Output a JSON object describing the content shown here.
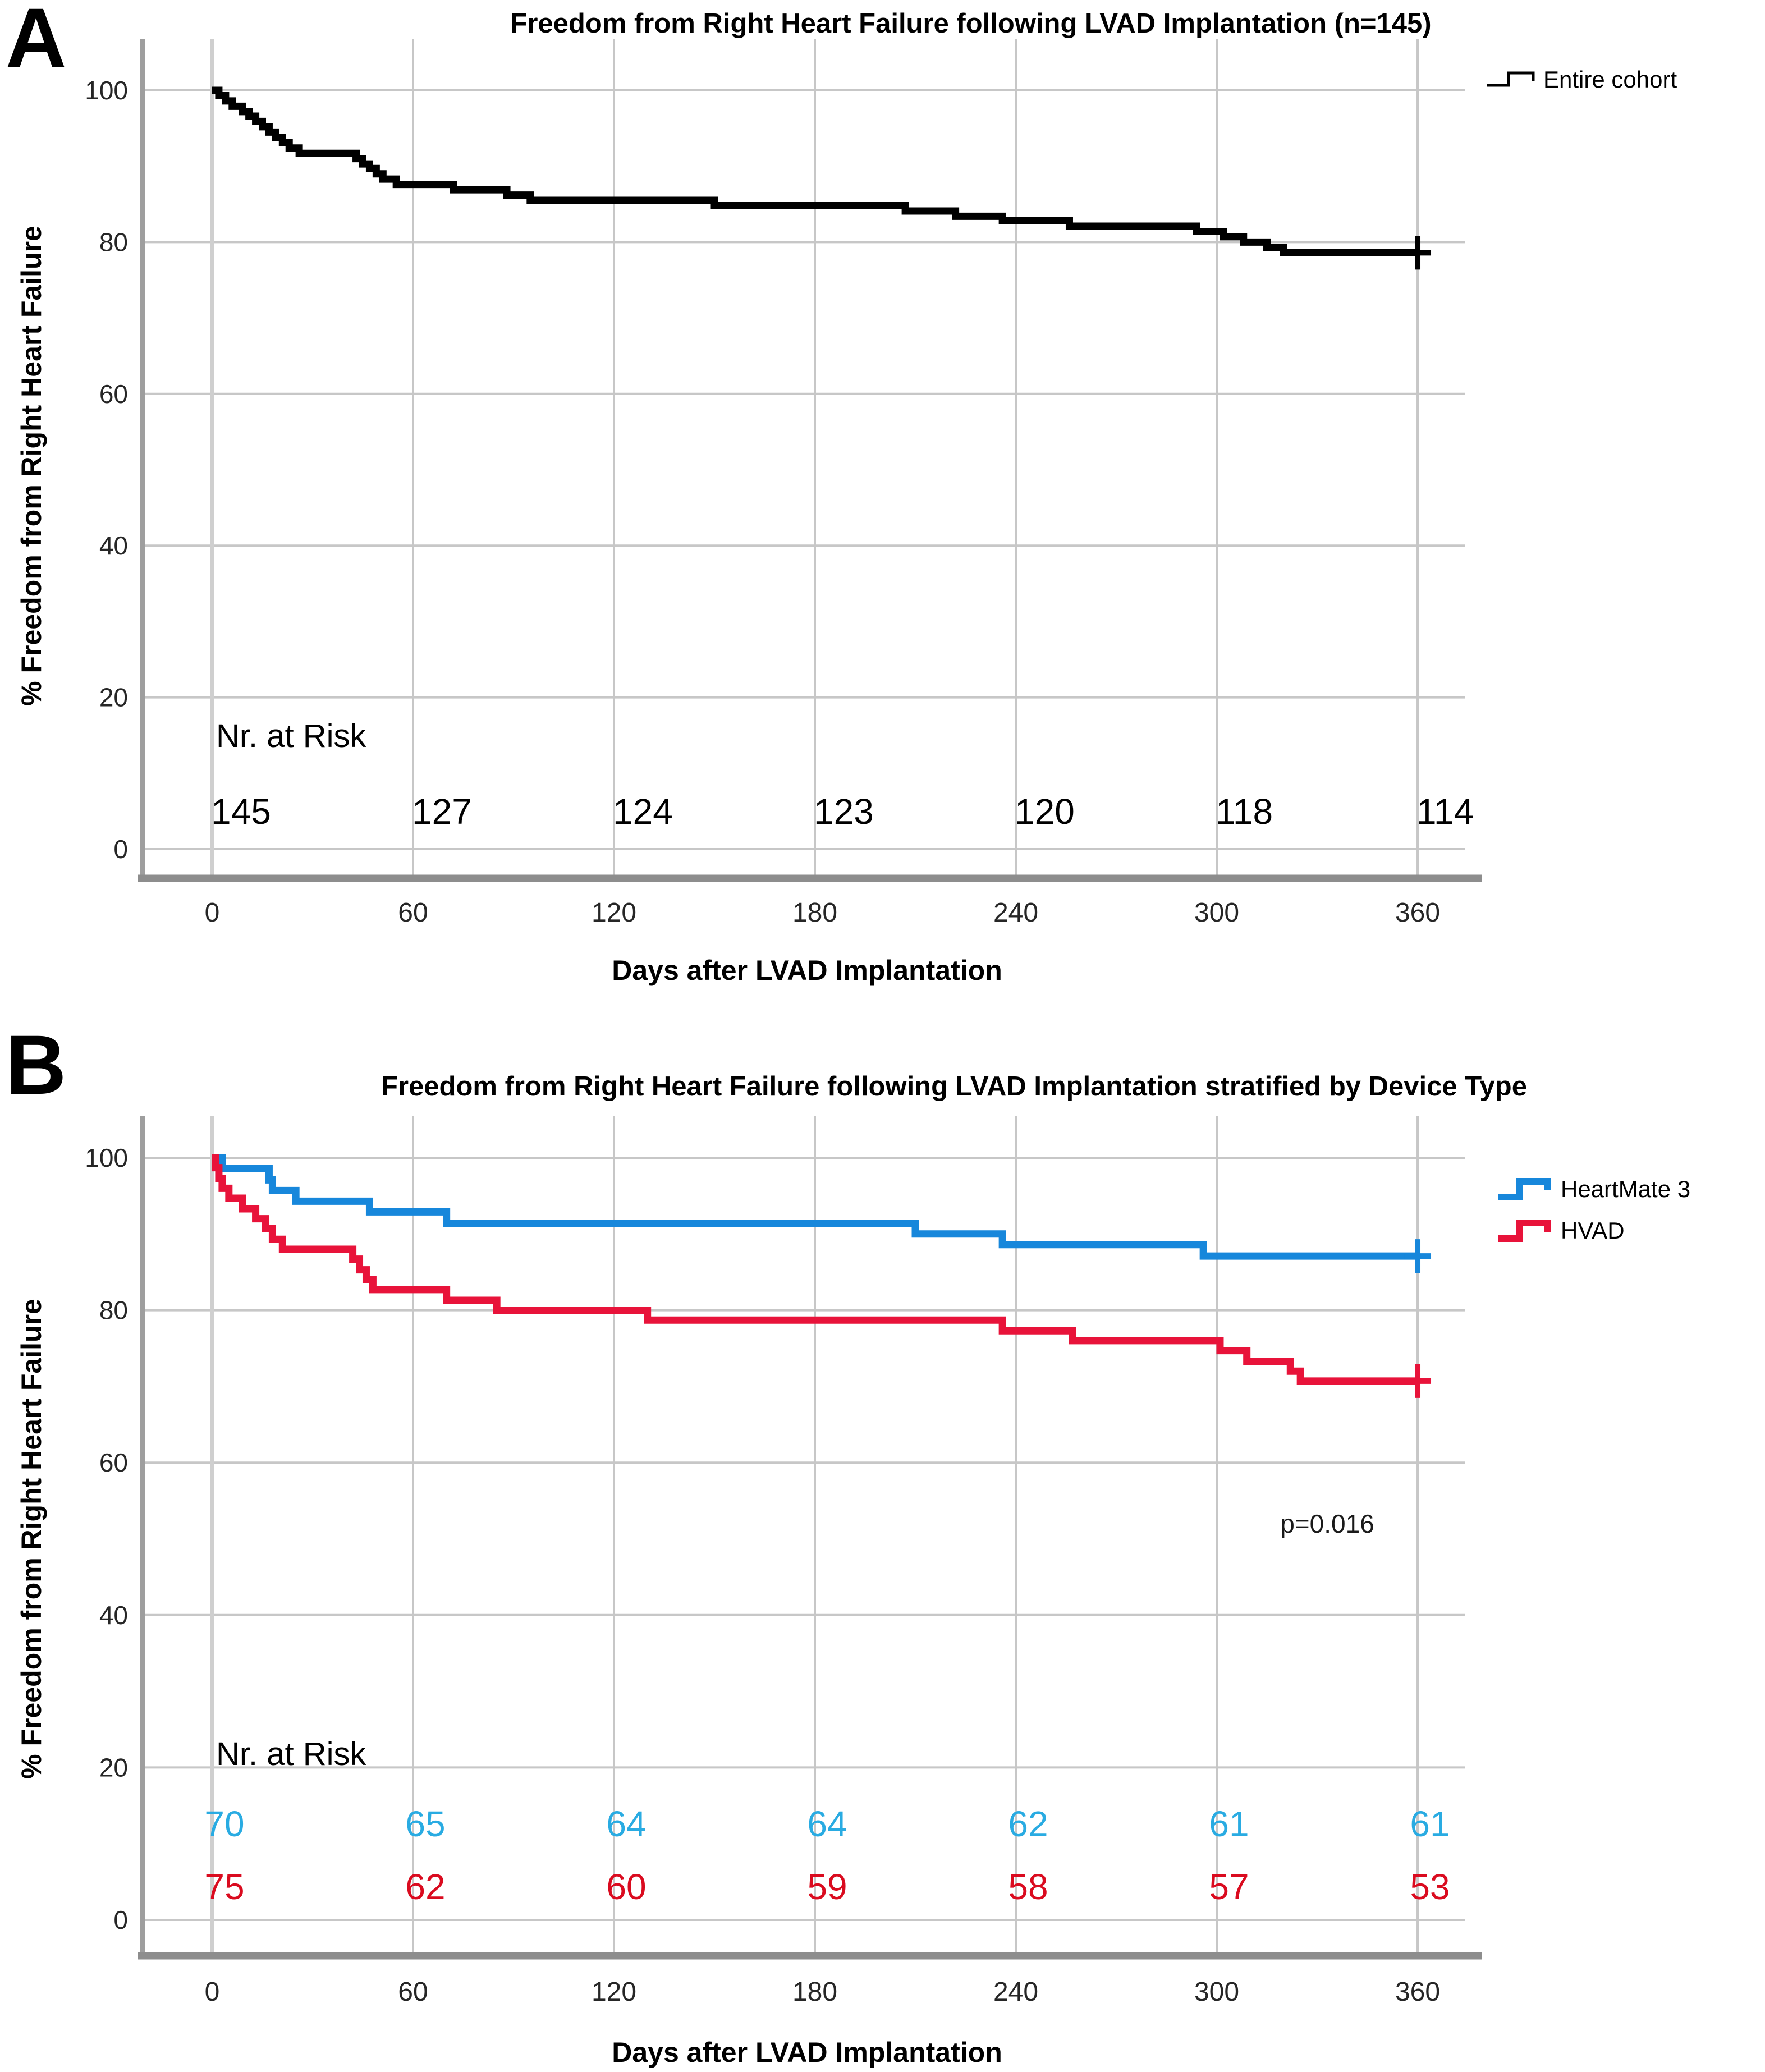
{
  "figure": {
    "panel_letters": [
      "A",
      "B"
    ]
  },
  "palette": {
    "grid": "#c7c7c7",
    "grid_zero_day": "#cfcfcf",
    "axis_left": "#9e9e9e",
    "axis_bottom": "#8d8d8d",
    "tick_text": "#262626",
    "entire_cohort": "#000000",
    "heartmate3_line": "#1787db",
    "hvad_line": "#e8133a",
    "heartmate3_risk_text": "#29abe2",
    "hvad_risk_text": "#da0b1f"
  },
  "chart_data": [
    {
      "type": "line",
      "subtype": "kaplan-meier-step",
      "panel": "A",
      "title": "Freedom from Right Heart Failure following LVAD Implantation (n=145)",
      "xlabel": "Days after LVAD Implantation",
      "ylabel": "% Freedom from Right Heart Failure",
      "xticks": [
        0,
        60,
        120,
        180,
        240,
        300,
        360
      ],
      "yticks": [
        0,
        20,
        40,
        60,
        80,
        100
      ],
      "xlim": [
        0,
        374
      ],
      "ylim": [
        0,
        107
      ],
      "grid": true,
      "legend_position": "top-right",
      "series": [
        {
          "name": "Entire cohort",
          "color": "#000000",
          "linewidth": 13,
          "censor_at_end": true,
          "points": [
            [
              0,
              100
            ],
            [
              2,
              99.3
            ],
            [
              4,
              98.6
            ],
            [
              6,
              97.9
            ],
            [
              9,
              97.2
            ],
            [
              11,
              96.6
            ],
            [
              13,
              95.9
            ],
            [
              15,
              95.2
            ],
            [
              17,
              94.5
            ],
            [
              19,
              93.8
            ],
            [
              21,
              93.1
            ],
            [
              23,
              92.4
            ],
            [
              26,
              91.7
            ],
            [
              43,
              91.0
            ],
            [
              45,
              90.3
            ],
            [
              47,
              89.7
            ],
            [
              49,
              89.0
            ],
            [
              51,
              88.3
            ],
            [
              55,
              87.6
            ],
            [
              72,
              86.9
            ],
            [
              88,
              86.2
            ],
            [
              95,
              85.5
            ],
            [
              150,
              84.8
            ],
            [
              207,
              84.1
            ],
            [
              222,
              83.4
            ],
            [
              236,
              82.8
            ],
            [
              256,
              82.1
            ],
            [
              294,
              81.4
            ],
            [
              302,
              80.7
            ],
            [
              308,
              80.0
            ],
            [
              315,
              79.3
            ],
            [
              320,
              78.6
            ],
            [
              360,
              78.6
            ]
          ]
        }
      ],
      "risk_table": {
        "label": "Nr. at Risk",
        "rows": [
          {
            "name": "Entire cohort",
            "color": "#000000",
            "values": [
              145,
              127,
              124,
              123,
              120,
              118,
              114
            ]
          }
        ]
      },
      "annotation": ""
    },
    {
      "type": "line",
      "subtype": "kaplan-meier-step",
      "panel": "B",
      "title": "Freedom from Right Heart Failure following LVAD Implantation stratified by Device Type",
      "xlabel": "Days after LVAD Implantation",
      "ylabel": "% Freedom from Right Heart Failure",
      "xticks": [
        0,
        60,
        120,
        180,
        240,
        300,
        360
      ],
      "yticks": [
        0,
        20,
        40,
        60,
        80,
        100
      ],
      "xlim": [
        0,
        374
      ],
      "ylim": [
        0,
        107
      ],
      "grid": true,
      "legend_position": "top-right",
      "annotation": "p=0.016",
      "series": [
        {
          "name": "HeartMate 3",
          "color": "#1787db",
          "linewidth": 13,
          "censor_at_end": true,
          "points": [
            [
              0,
              100
            ],
            [
              3,
              98.6
            ],
            [
              17,
              97.1
            ],
            [
              18,
              95.7
            ],
            [
              25,
              94.3
            ],
            [
              47,
              92.9
            ],
            [
              70,
              91.4
            ],
            [
              210,
              90.0
            ],
            [
              236,
              88.6
            ],
            [
              296,
              87.1
            ],
            [
              360,
              87.1
            ]
          ]
        },
        {
          "name": "HVAD",
          "color": "#e8133a",
          "linewidth": 13,
          "censor_at_end": true,
          "points": [
            [
              0,
              100
            ],
            [
              1,
              98.7
            ],
            [
              2,
              97.3
            ],
            [
              3,
              96.0
            ],
            [
              5,
              94.7
            ],
            [
              9,
              93.3
            ],
            [
              13,
              92.0
            ],
            [
              16,
              90.7
            ],
            [
              18,
              89.3
            ],
            [
              21,
              88.0
            ],
            [
              42,
              86.7
            ],
            [
              44,
              85.3
            ],
            [
              46,
              84.0
            ],
            [
              48,
              82.7
            ],
            [
              70,
              81.3
            ],
            [
              85,
              80.0
            ],
            [
              130,
              78.7
            ],
            [
              236,
              77.3
            ],
            [
              257,
              76.0
            ],
            [
              301,
              74.7
            ],
            [
              309,
              73.3
            ],
            [
              322,
              72.0
            ],
            [
              325,
              70.7
            ],
            [
              360,
              70.7
            ]
          ]
        }
      ],
      "risk_table": {
        "label": "Nr. at Risk",
        "rows": [
          {
            "name": "HeartMate 3",
            "color": "#29abe2",
            "values": [
              70,
              65,
              64,
              64,
              62,
              61,
              61
            ]
          },
          {
            "name": "HVAD",
            "color": "#da0b1f",
            "values": [
              75,
              62,
              60,
              59,
              58,
              57,
              53
            ]
          }
        ]
      }
    }
  ]
}
